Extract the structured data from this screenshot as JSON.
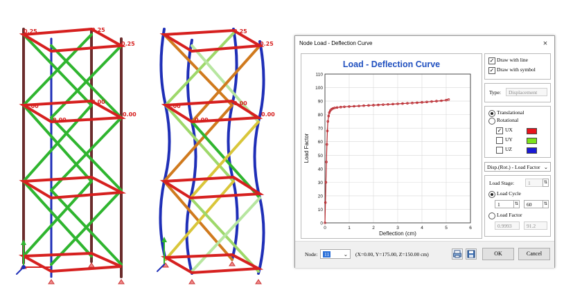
{
  "colors": {
    "frame_red": "#d6201f",
    "brace_green": "#2fb52f",
    "column_dark": "#6b2c2c",
    "column_blue": "#1f2fb7",
    "brace_orange": "#d07a1e",
    "brace_lightgreen": "#9ed86a",
    "curve_red": "#b8242a",
    "title_blue": "#1f4fbf",
    "ux_color": "#e8141c",
    "uy_color": "#7ce21a",
    "uz_color": "#1a1ad6"
  },
  "model_left": {
    "labels": [
      "0.25",
      "0.25",
      "0.25",
      "0.00",
      "0.00",
      "0.00",
      "0.00"
    ]
  },
  "model_right": {
    "labels": [
      "0.25",
      "0.25",
      "0.00",
      "0.00",
      "0.00",
      "0.00"
    ]
  },
  "dialog": {
    "title": "Node Load - Deflection Curve",
    "close_icon": "×",
    "chart_title": "Load - Deflection Curve",
    "options": {
      "draw_with_line": "Draw with line",
      "draw_with_symbol": "Draw with symbol",
      "draw_with_line_checked": true,
      "draw_with_symbol_checked": true
    },
    "type_label": "Type:",
    "type_value": "Displacement",
    "translational": "Translational",
    "rotational": "Rotational",
    "dof": [
      {
        "label": "UX",
        "checked": true
      },
      {
        "label": "UY",
        "checked": false
      },
      {
        "label": "UZ",
        "checked": false
      }
    ],
    "disp_select": "Disp.(Rot.) - Load Factor",
    "load_stage_label": "Load Stage:",
    "load_stage_value": "1",
    "load_cycle_label": "Load Cycle",
    "load_cycle_from": "1",
    "load_cycle_to": "60",
    "load_factor_label": "Load Factor",
    "load_factor_from": "0.9993",
    "load_factor_to": "91.2",
    "node_label": "Node:",
    "node_value": "11",
    "node_coords": "(X=0.00, Y=175.00, Z=150.00 cm)",
    "ok_label": "OK",
    "cancel_label": "Cancel"
  },
  "chart_data": {
    "type": "line",
    "title": "Load - Deflection Curve",
    "xlabel": "Deflection (cm)",
    "ylabel": "Load Factor",
    "xlim": [
      0,
      6
    ],
    "ylim": [
      0,
      110
    ],
    "xticks": [
      "0",
      "1",
      "2",
      "3",
      "4",
      "5",
      "6"
    ],
    "yticks": [
      "0",
      "10",
      "20",
      "30",
      "40",
      "50",
      "60",
      "70",
      "80",
      "90",
      "100",
      "110"
    ],
    "grid": true,
    "series": [
      {
        "x": [
          0,
          0.02,
          0.04,
          0.06,
          0.08,
          0.1,
          0.12,
          0.15,
          0.18,
          0.22,
          0.27,
          0.33,
          0.4,
          0.5,
          0.65,
          0.8,
          1.0,
          1.2,
          1.4,
          1.6,
          1.8,
          2.0,
          2.2,
          2.4,
          2.6,
          2.8,
          3.0,
          3.2,
          3.4,
          3.6,
          3.8,
          4.0,
          4.2,
          4.4,
          4.6,
          4.8,
          5.0,
          5.1
        ],
        "y": [
          0,
          15,
          30,
          45,
          58,
          68,
          75,
          79,
          81.5,
          83,
          84,
          84.6,
          85,
          85.3,
          85.6,
          85.8,
          86,
          86.2,
          86.4,
          86.6,
          86.8,
          87,
          87.2,
          87.4,
          87.6,
          87.8,
          88,
          88.2,
          88.4,
          88.6,
          88.8,
          89.1,
          89.4,
          89.7,
          90.0,
          90.3,
          90.7,
          91.2
        ]
      }
    ]
  }
}
